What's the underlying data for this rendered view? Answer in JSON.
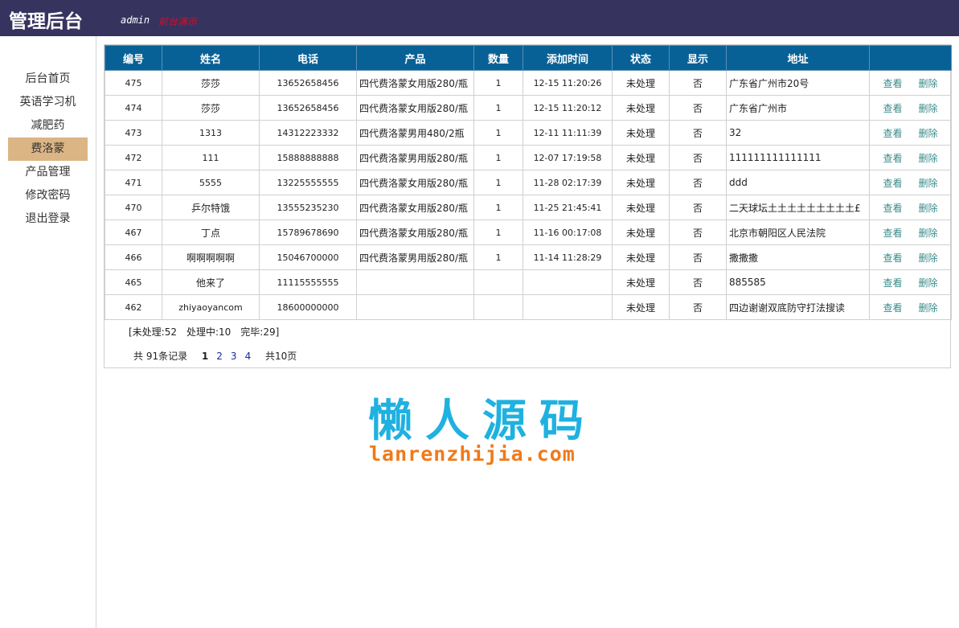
{
  "header": {
    "title": "管理后台",
    "user": "admin",
    "front_link": "前台演示"
  },
  "sidebar": {
    "items": [
      {
        "label": "后台首页"
      },
      {
        "label": "英语学习机"
      },
      {
        "label": "减肥药"
      },
      {
        "label": "费洛蒙",
        "active": true
      },
      {
        "label": "产品管理"
      },
      {
        "label": "修改密码"
      },
      {
        "label": "退出登录"
      }
    ]
  },
  "table": {
    "columns": [
      "编号",
      "姓名",
      "电话",
      "产品",
      "数量",
      "添加时间",
      "状态",
      "显示",
      "地址",
      ""
    ],
    "rows": [
      [
        "475",
        "莎莎",
        "13652658456",
        "四代费洛蒙女用版280/瓶",
        "1",
        "12-15 11:20:26",
        "未处理",
        "否",
        "广东省广州市20号"
      ],
      [
        "474",
        "莎莎",
        "13652658456",
        "四代费洛蒙女用版280/瓶",
        "1",
        "12-15 11:20:12",
        "未处理",
        "否",
        "广东省广州市"
      ],
      [
        "473",
        "1313",
        "14312223332",
        "四代费洛蒙男用480/2瓶",
        "1",
        "12-11 11:11:39",
        "未处理",
        "否",
        "32"
      ],
      [
        "472",
        "111",
        "15888888888",
        "四代费洛蒙男用版280/瓶",
        "1",
        "12-07 17:19:58",
        "未处理",
        "否",
        "111111111111111"
      ],
      [
        "471",
        "5555",
        "13225555555",
        "四代费洛蒙女用版280/瓶",
        "1",
        "11-28 02:17:39",
        "未处理",
        "否",
        "ddd"
      ],
      [
        "470",
        "乒尔特饿",
        "13555235230",
        "四代费洛蒙女用版280/瓶",
        "1",
        "11-25 21:45:41",
        "未处理",
        "否",
        "二天球坛土土土土土土土土土£"
      ],
      [
        "467",
        "丁点",
        "15789678690",
        "四代费洛蒙女用版280/瓶",
        "1",
        "11-16 00:17:08",
        "未处理",
        "否",
        "北京市朝阳区人民法院"
      ],
      [
        "466",
        "啊啊啊啊啊",
        "15046700000",
        "四代费洛蒙男用版280/瓶",
        "1",
        "11-14 11:28:29",
        "未处理",
        "否",
        "撒撒撒"
      ],
      [
        "465",
        "他来了",
        "11115555555",
        "",
        "",
        "",
        "未处理",
        "否",
        "885585"
      ],
      [
        "462",
        "zhiyaoyancom",
        "18600000000",
        "",
        "",
        "",
        "未处理",
        "否",
        "四边谢谢双底防守打法搜读"
      ]
    ],
    "view_label": "查看",
    "delete_label": "删除"
  },
  "summary": "[未处理:52　处理中:10　完毕:29]",
  "pager": {
    "total": "共 91条记录",
    "current": "1",
    "pages": [
      "2",
      "3",
      "4"
    ],
    "total_pages": "共10页"
  },
  "watermark": {
    "cn": "懒人源码",
    "en": "lanrenzhijia.com"
  }
}
